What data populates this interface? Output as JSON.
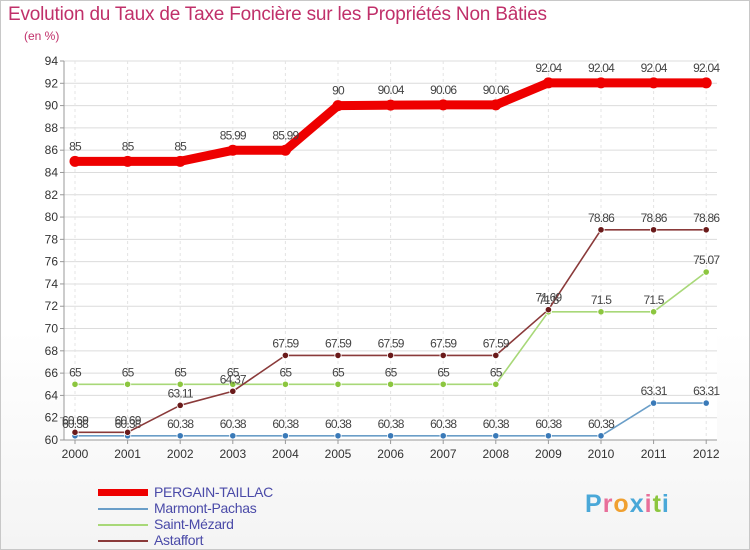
{
  "header": {
    "title": "Evolution du Taux de Taxe Foncière sur les Propriétés Non Bâties",
    "subtitle": "(en %)"
  },
  "logo": {
    "text": "Proxiti",
    "letter_colors": [
      "#4aa8d8",
      "#e86f9a",
      "#f0a030",
      "#4aa8d8",
      "#e86f9a",
      "#8cc63f",
      "#4aa8d8"
    ]
  },
  "chart_data": {
    "type": "line",
    "title": "Evolution du Taux de Taxe Foncière sur les Propriétés Non Bâties",
    "ylabel": "(en %)",
    "xlabel": "",
    "x": [
      "2000",
      "2001",
      "2002",
      "2003",
      "2004",
      "2005",
      "2006",
      "2007",
      "2008",
      "2009",
      "2010",
      "2011",
      "2012"
    ],
    "ylim": [
      60,
      94
    ],
    "yticks": [
      60,
      62,
      64,
      66,
      68,
      70,
      72,
      74,
      76,
      78,
      80,
      82,
      84,
      86,
      88,
      90,
      92,
      94
    ],
    "grid": true,
    "legend_position": "bottom-left",
    "series": [
      {
        "name": "Marmont-Pachas",
        "color": "#6a9ec8",
        "marker": "#3a7ab8",
        "values": [
          60.38,
          60.38,
          60.38,
          60.38,
          60.38,
          60.38,
          60.38,
          60.38,
          60.38,
          60.38,
          60.38,
          63.31,
          63.31
        ],
        "labels": [
          "60.38",
          "60.38",
          "60.38",
          "60.38",
          "60.38",
          "60.38",
          "60.38",
          "60.38",
          "60.38",
          "60.38",
          "60.38",
          "63.31",
          "63.31"
        ]
      },
      {
        "name": "Saint-Mézard",
        "color": "#a8d878",
        "marker": "#8cc63f",
        "values": [
          65,
          65,
          65,
          65,
          65,
          65,
          65,
          65,
          65,
          71.5,
          71.5,
          71.5,
          75.07
        ],
        "labels": [
          "65",
          "65",
          "65",
          "65",
          "65",
          "65",
          "65",
          "65",
          "65",
          "71.5",
          "71.5",
          "71.5",
          "75.07"
        ]
      },
      {
        "name": "Astaffort",
        "color": "#8a3a3a",
        "marker": "#6a1a1a",
        "values": [
          60.69,
          60.69,
          63.11,
          64.37,
          67.59,
          67.59,
          67.59,
          67.59,
          67.59,
          71.69,
          78.86,
          78.86,
          78.86
        ],
        "labels": [
          "60.69",
          "60.69",
          "63.11",
          "64.37",
          "67.59",
          "67.59",
          "67.59",
          "67.59",
          "67.59",
          "71.69",
          "78.86",
          "78.86",
          "78.86"
        ]
      },
      {
        "name": "PERGAIN-TAILLAC",
        "color": "#ee0000",
        "marker": "#ee0000",
        "values": [
          85,
          85,
          85,
          85.99,
          85.99,
          90,
          90.04,
          90.06,
          90.06,
          92.04,
          92.04,
          92.04,
          92.04
        ],
        "labels": [
          "85",
          "85",
          "85",
          "85.99",
          "85.99",
          "90",
          "90.04",
          "90.06",
          "90.06",
          "92.04",
          "92.04",
          "92.04",
          "92.04"
        ]
      }
    ],
    "legend_order": [
      "PERGAIN-TAILLAC",
      "Marmont-Pachas",
      "Saint-Mézard",
      "Astaffort"
    ]
  }
}
